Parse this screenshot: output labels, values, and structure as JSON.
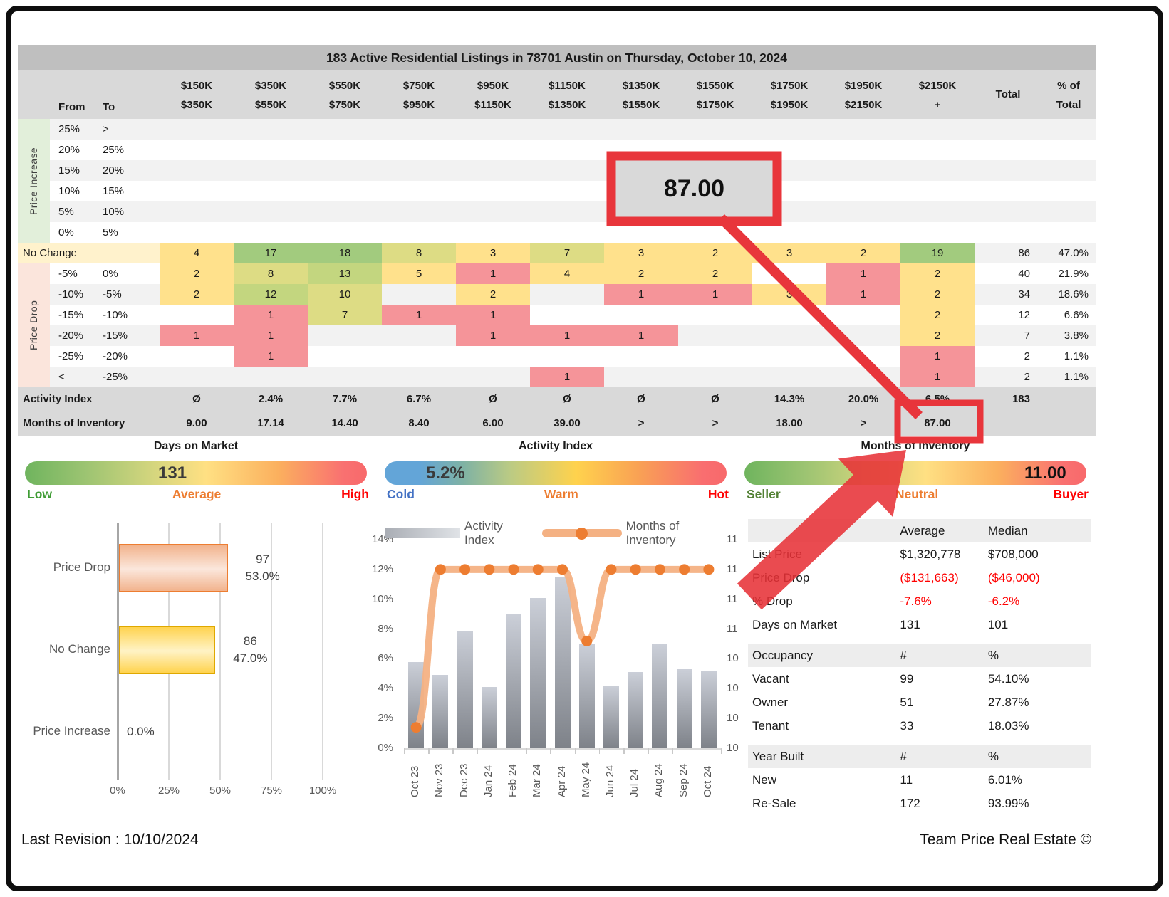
{
  "title": "183 Active Residential Listings in 78701 Austin on Thursday, October 10, 2024",
  "palette": {
    "g": "#A2CB7E",
    "lg": "#C3D67F",
    "yg": "#DDDC84",
    "y": "#FFE18C",
    "r": "#F59499",
    "stripe": "#F2F2F2",
    "white": "#FFFFFF",
    "band": "#D9D9D9",
    "titlebar": "#BFBFBF",
    "increase_strip": "#E2EFDA",
    "drop_strip": "#FBE5DC",
    "no_change_bg": "#FFF2CC",
    "annotation_red": "#E8353B"
  },
  "matrix": {
    "from_label": "From",
    "to_label": "To",
    "total_label": "Total",
    "pct_label_1": "% of",
    "pct_label_2": "Total",
    "price_cols_top": [
      "$150K",
      "$350K",
      "$550K",
      "$750K",
      "$950K",
      "$1150K",
      "$1350K",
      "$1550K",
      "$1750K",
      "$1950K",
      "$2150K"
    ],
    "price_cols_bottom": [
      "$350K",
      "$550K",
      "$750K",
      "$950K",
      "$1150K",
      "$1350K",
      "$1550K",
      "$1750K",
      "$1950K",
      "$2150K",
      "+"
    ],
    "increase_label": "Price Increase",
    "drop_label": "Price Drop",
    "increase_rows": [
      {
        "from": "25%",
        "to": ">"
      },
      {
        "from": "20%",
        "to": "25%"
      },
      {
        "from": "15%",
        "to": "20%"
      },
      {
        "from": "10%",
        "to": "15%"
      },
      {
        "from": "5%",
        "to": "10%"
      },
      {
        "from": "0%",
        "to": "5%"
      }
    ],
    "no_change": {
      "label": "No Change",
      "cells": [
        [
          4,
          "y"
        ],
        [
          17,
          "g"
        ],
        [
          18,
          "g"
        ],
        [
          8,
          "yg"
        ],
        [
          3,
          "y"
        ],
        [
          7,
          "yg"
        ],
        [
          3,
          "y"
        ],
        [
          2,
          "y"
        ],
        [
          3,
          "y"
        ],
        [
          2,
          "y"
        ],
        [
          19,
          "g"
        ]
      ],
      "total": "86",
      "pct": "47.0%"
    },
    "drop_rows": [
      {
        "from": "-5%",
        "to": "0%",
        "cells": [
          [
            2,
            "y"
          ],
          [
            8,
            "yg"
          ],
          [
            13,
            "lg"
          ],
          [
            5,
            "y"
          ],
          [
            1,
            "r"
          ],
          [
            4,
            "y"
          ],
          [
            2,
            "y"
          ],
          [
            2,
            "y"
          ],
          null,
          [
            1,
            "r"
          ],
          [
            2,
            "y"
          ]
        ],
        "total": "40",
        "pct": "21.9%"
      },
      {
        "from": "-10%",
        "to": "-5%",
        "cells": [
          [
            2,
            "y"
          ],
          [
            12,
            "lg"
          ],
          [
            10,
            "yg"
          ],
          null,
          [
            2,
            "y"
          ],
          null,
          [
            1,
            "r"
          ],
          [
            1,
            "r"
          ],
          [
            3,
            "y"
          ],
          [
            1,
            "r"
          ],
          [
            2,
            "y"
          ]
        ],
        "total": "34",
        "pct": "18.6%"
      },
      {
        "from": "-15%",
        "to": "-10%",
        "cells": [
          null,
          [
            1,
            "r"
          ],
          [
            7,
            "yg"
          ],
          [
            1,
            "r"
          ],
          [
            1,
            "r"
          ],
          null,
          null,
          null,
          null,
          null,
          [
            2,
            "y"
          ]
        ],
        "total": "12",
        "pct": "6.6%"
      },
      {
        "from": "-20%",
        "to": "-15%",
        "cells": [
          [
            1,
            "r"
          ],
          [
            1,
            "r"
          ],
          null,
          null,
          [
            1,
            "r"
          ],
          [
            1,
            "r"
          ],
          [
            1,
            "r"
          ],
          null,
          null,
          null,
          [
            2,
            "y"
          ]
        ],
        "total": "7",
        "pct": "3.8%"
      },
      {
        "from": "-25%",
        "to": "-20%",
        "cells": [
          null,
          [
            1,
            "r"
          ],
          null,
          null,
          null,
          null,
          null,
          null,
          null,
          null,
          [
            1,
            "r"
          ]
        ],
        "total": "2",
        "pct": "1.1%"
      },
      {
        "from": "<",
        "to": "-25%",
        "cells": [
          null,
          null,
          null,
          null,
          null,
          [
            1,
            "r"
          ],
          null,
          null,
          null,
          null,
          [
            1,
            "r"
          ]
        ],
        "total": "2",
        "pct": "1.1%"
      }
    ],
    "activity_index": {
      "label": "Activity Index",
      "values": [
        "Ø",
        "2.4%",
        "7.7%",
        "6.7%",
        "Ø",
        "Ø",
        "Ø",
        "Ø",
        "14.3%",
        "20.0%",
        "6.5%"
      ],
      "total": "183"
    },
    "months_inventory": {
      "label": "Months of Inventory",
      "values": [
        "9.00",
        "17.14",
        "14.40",
        "8.40",
        "6.00",
        "39.00",
        ">",
        ">",
        "18.00",
        ">",
        "87.00"
      ]
    }
  },
  "callout": {
    "value": "87.00"
  },
  "gauges": [
    {
      "title": "Days on Market",
      "value": "131",
      "scale_low": "Low",
      "scale_mid": "Average",
      "scale_high": "High",
      "color_low": "#3F9C35",
      "color_mid": "#ED7D31",
      "color_high": "#FF0000"
    },
    {
      "title": "Activity Index",
      "value": "5.2%",
      "scale_low": "Cold",
      "scale_mid": "Warm",
      "scale_high": "Hot",
      "color_low": "#4472C4",
      "color_mid": "#ED7D31",
      "color_high": "#FF0000"
    },
    {
      "title": "Months of Inventory",
      "value": "11.00",
      "scale_low": "Seller",
      "scale_mid": "Neutral",
      "scale_high": "Buyer",
      "color_low": "#538135",
      "color_mid": "#ED7D31",
      "color_high": "#FF0000"
    }
  ],
  "chart_data": [
    {
      "type": "bar",
      "orientation": "horizontal",
      "title": "",
      "categories": [
        "Price Drop",
        "No Change",
        "Price Increase"
      ],
      "values": [
        53.0,
        47.0,
        0.0
      ],
      "counts": [
        97,
        86,
        0
      ],
      "count_labels": [
        "97",
        "86",
        null
      ],
      "pct_labels": [
        "53.0%",
        "47.0%",
        "0.0%"
      ],
      "x_ticks": [
        "0%",
        "25%",
        "50%",
        "75%",
        "100%"
      ],
      "xlim": [
        0,
        100
      ],
      "grid": true,
      "legend": "none"
    },
    {
      "type": "combo-bar-line",
      "categories": [
        "Oct 23",
        "Nov 23",
        "Dec 23",
        "Jan 24",
        "Feb 24",
        "Mar 24",
        "Apr 24",
        "May 24",
        "Jun 24",
        "Jul 24",
        "Aug 24",
        "Sep 24",
        "Oct 24"
      ],
      "series": [
        {
          "name": "Activity Index",
          "type": "bar",
          "axis": "left",
          "values": [
            5.8,
            4.9,
            7.9,
            4.1,
            9.0,
            10.1,
            11.5,
            7.0,
            4.2,
            5.1,
            7.0,
            5.3,
            5.2
          ]
        },
        {
          "name": "Months of Inventory",
          "type": "line",
          "axis": "right",
          "values_on_pct_axis": [
            1.4,
            12,
            12,
            12,
            12,
            12,
            12,
            7.2,
            12,
            12,
            12,
            12,
            12
          ]
        }
      ],
      "ylabel": "",
      "ylim": [
        0,
        14
      ],
      "y_ticks": [
        "0%",
        "2%",
        "4%",
        "6%",
        "8%",
        "10%",
        "12%",
        "14%"
      ],
      "right_axis_labels_top_to_bottom": [
        "11",
        "11",
        "11",
        "11",
        "10",
        "10",
        "10",
        "10"
      ],
      "legend": [
        "Activity Index",
        "Months of Inventory"
      ],
      "legend_position": "top",
      "grid": false
    }
  ],
  "stats": {
    "col_header_avg": "Average",
    "col_header_med": "Median",
    "price_rows": [
      {
        "label": "List Price",
        "avg": "$1,320,778",
        "med": "$708,000",
        "red": false
      },
      {
        "label": "Price Drop",
        "avg": "($131,663)",
        "med": "($46,000)",
        "red": true
      },
      {
        "label": "% Drop",
        "avg": "-7.6%",
        "med": "-6.2%",
        "red": true
      },
      {
        "label": "Days on Market",
        "avg": "131",
        "med": "101",
        "red": false
      }
    ],
    "occupancy": {
      "label": "Occupancy",
      "count_header": "#",
      "pct_header": "%",
      "rows": [
        [
          "Vacant",
          "99",
          "54.10%"
        ],
        [
          "Owner",
          "51",
          "27.87%"
        ],
        [
          "Tenant",
          "33",
          "18.03%"
        ]
      ]
    },
    "year_built": {
      "label": "Year Built",
      "count_header": "#",
      "pct_header": "%",
      "rows": [
        [
          "New",
          "11",
          "6.01%"
        ],
        [
          "Re-Sale",
          "172",
          "93.99%"
        ]
      ]
    }
  },
  "footer": {
    "left": "Last Revision : 10/10/2024",
    "right": "Team Price Real Estate ©"
  }
}
